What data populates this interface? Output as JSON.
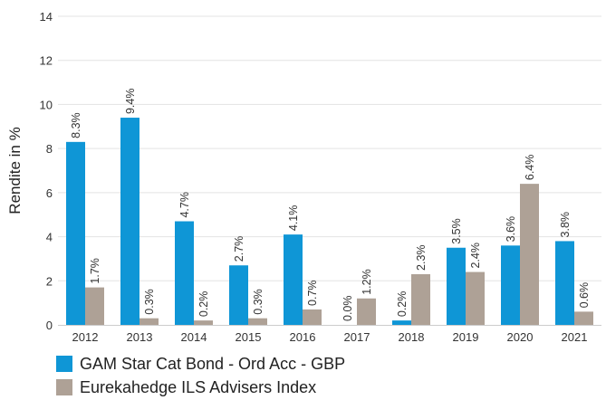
{
  "chart_data": {
    "type": "bar",
    "title": "",
    "xlabel": "",
    "ylabel": "Rendite in %",
    "ylim": [
      0,
      14
    ],
    "yticks": [
      "0",
      "2",
      "4",
      "6",
      "8",
      "10",
      "12",
      "14"
    ],
    "categories": [
      "2012",
      "2013",
      "2014",
      "2015",
      "2016",
      "2017",
      "2018",
      "2019",
      "2020",
      "2021"
    ],
    "grid": true,
    "legend_position": "bottom-left",
    "series": [
      {
        "name": "GAM Star Cat Bond - Ord Acc - GBP",
        "color": "#0f96d6",
        "values": [
          8.3,
          9.4,
          4.7,
          2.7,
          4.1,
          0.0,
          0.2,
          3.5,
          3.6,
          3.8
        ],
        "labels": [
          "8.3%",
          "9.4%",
          "4.7%",
          "2.7%",
          "4.1%",
          "0.0%",
          "0.2%",
          "3.5%",
          "3.6%",
          "3.8%"
        ]
      },
      {
        "name": "Eurekahedge ILS Advisers Index",
        "color": "#aea196",
        "values": [
          1.7,
          0.3,
          0.2,
          0.3,
          0.7,
          1.2,
          2.3,
          2.4,
          6.4,
          0.6
        ],
        "labels": [
          "1.7%",
          "0.3%",
          "0.2%",
          "0.3%",
          "0.7%",
          "1.2%",
          "2.3%",
          "2.4%",
          "6.4%",
          "0.6%"
        ]
      }
    ]
  }
}
